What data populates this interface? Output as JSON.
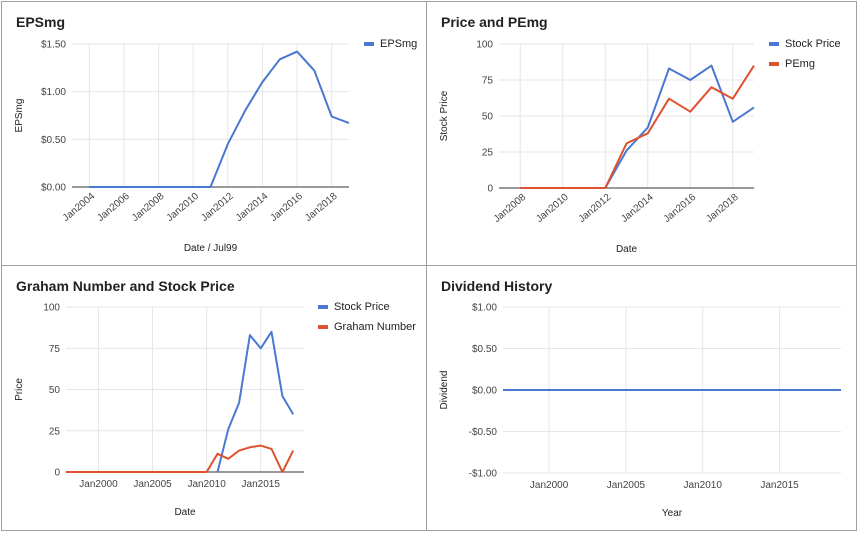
{
  "chart_data": [
    {
      "type": "line",
      "title": "EPSmg",
      "xlabel": "Date / Jul99",
      "ylabel": "EPSmg",
      "legend": "top-right",
      "x": [
        2004,
        2005,
        2006,
        2007,
        2008,
        2009,
        2010,
        2011,
        2012,
        2013,
        2014,
        2015,
        2016,
        2017,
        2018,
        2019
      ],
      "series": [
        {
          "name": "EPSmg",
          "color": "#4a78d0",
          "values": [
            0,
            0,
            0,
            0,
            0,
            0,
            0,
            0,
            0.45,
            0.8,
            1.1,
            1.34,
            1.42,
            1.22,
            0.74,
            0.67
          ]
        }
      ],
      "xlim": [
        2003,
        2019
      ],
      "ylim": [
        0,
        1.5
      ],
      "yticks": [
        0,
        0.5,
        1.0,
        1.5
      ],
      "ytick_labels": [
        "$0.00",
        "$0.50",
        "$1.00",
        "$1.50"
      ],
      "xticks": [
        2004,
        2006,
        2008,
        2010,
        2012,
        2014,
        2016,
        2018
      ],
      "xtick_labels": [
        "Jan2004",
        "Jan2006",
        "Jan2008",
        "Jan2010",
        "Jan2012",
        "Jan2014",
        "Jan2016",
        "Jan2018"
      ],
      "grid": true
    },
    {
      "type": "line",
      "title": "Price and PEmg",
      "xlabel": "Date",
      "ylabel": "Stock Price",
      "legend": "top-right",
      "x": [
        2008,
        2009,
        2010,
        2011,
        2012,
        2013,
        2014,
        2015,
        2016,
        2017,
        2018,
        2019
      ],
      "series": [
        {
          "name": "Stock Price",
          "color": "#4a78d0",
          "values": [
            0,
            0,
            0,
            0,
            0,
            26,
            42,
            83,
            75,
            85,
            46,
            56
          ]
        },
        {
          "name": "PEmg",
          "color": "#e0512d",
          "values": [
            0,
            0,
            0,
            0,
            0,
            31,
            38,
            62,
            53,
            70,
            62,
            85
          ]
        }
      ],
      "xlim": [
        2007,
        2019
      ],
      "ylim": [
        0,
        100
      ],
      "yticks": [
        0,
        25,
        50,
        75,
        100
      ],
      "ytick_labels": [
        "0",
        "25",
        "50",
        "75",
        "100"
      ],
      "xticks": [
        2008,
        2010,
        2012,
        2014,
        2016,
        2018
      ],
      "xtick_labels": [
        "Jan2008",
        "Jan2010",
        "Jan2012",
        "Jan2014",
        "Jan2016",
        "Jan2018"
      ],
      "grid": true
    },
    {
      "type": "line",
      "title": "Graham Number and Stock Price",
      "xlabel": "Date",
      "ylabel": "Price",
      "legend": "top-right",
      "x": [
        1997,
        1998,
        1999,
        2000,
        2001,
        2002,
        2003,
        2004,
        2005,
        2006,
        2007,
        2008,
        2009,
        2010,
        2011,
        2012,
        2013,
        2014,
        2015,
        2016,
        2017,
        2018
      ],
      "series": [
        {
          "name": "Stock Price",
          "color": "#4a78d0",
          "values": [
            null,
            null,
            null,
            null,
            null,
            null,
            null,
            null,
            null,
            null,
            null,
            null,
            null,
            null,
            0,
            26,
            42,
            83,
            75,
            85,
            46,
            35
          ]
        },
        {
          "name": "Graham Number",
          "color": "#e0512d",
          "values": [
            0,
            0,
            0,
            0,
            0,
            0,
            0,
            0,
            0,
            0,
            0,
            0,
            0,
            0,
            11,
            8,
            13,
            15,
            16,
            14,
            0,
            13
          ]
        }
      ],
      "xlim": [
        1997,
        2019
      ],
      "ylim": [
        0,
        100
      ],
      "yticks": [
        0,
        25,
        50,
        75,
        100
      ],
      "ytick_labels": [
        "0",
        "25",
        "50",
        "75",
        "100"
      ],
      "xticks": [
        2000,
        2005,
        2010,
        2015
      ],
      "xtick_labels": [
        "Jan2000",
        "Jan2005",
        "Jan2010",
        "Jan2015"
      ],
      "grid": true
    },
    {
      "type": "line",
      "title": "Dividend History",
      "xlabel": "Year",
      "ylabel": "Dividend",
      "legend": "none",
      "x": [
        1997,
        2019
      ],
      "series": [
        {
          "color": "#4a78d0",
          "values": [
            0,
            0
          ]
        }
      ],
      "xlim": [
        1997,
        2019
      ],
      "ylim": [
        -1,
        1
      ],
      "yticks": [
        -1,
        -0.5,
        0,
        0.5,
        1
      ],
      "ytick_labels": [
        "-$1.00",
        "-$0.50",
        "$0.00",
        "$0.50",
        "$1.00"
      ],
      "xticks": [
        2000,
        2005,
        2010,
        2015
      ],
      "xtick_labels": [
        "Jan2000",
        "Jan2005",
        "Jan2010",
        "Jan2015"
      ],
      "grid": true
    }
  ]
}
